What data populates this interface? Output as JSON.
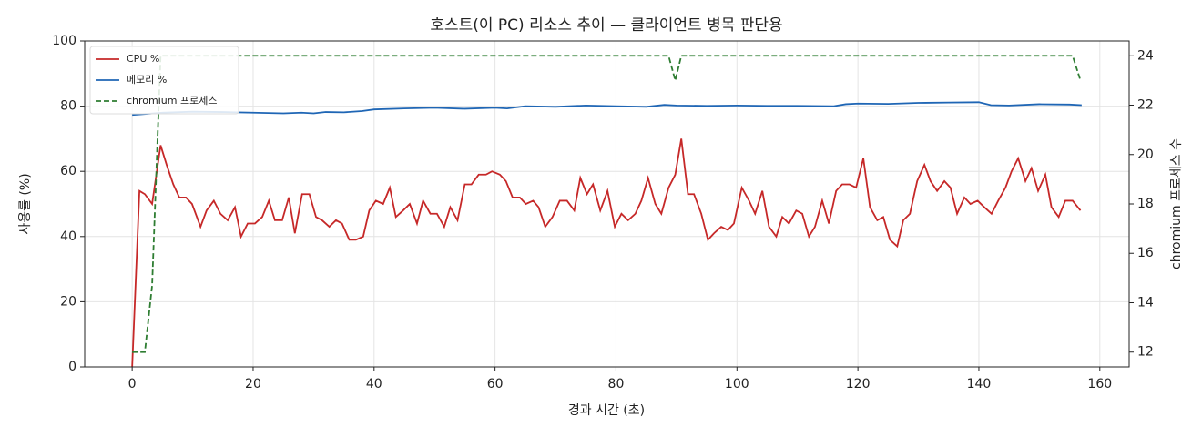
{
  "chart_data": {
    "type": "line",
    "title": "호스트(이 PC) 리소스 추이 — 클라이언트 병목 판단용",
    "x_label": "경과 시간 (초)",
    "y_label": "사용률 (%)",
    "y2_label": "chromium 프로세스 수",
    "xlim": [
      -7.85,
      164.85
    ],
    "xticks": [
      0,
      20,
      40,
      60,
      80,
      100,
      120,
      140,
      160
    ],
    "ylim": [
      0,
      100
    ],
    "yticks": [
      0,
      20,
      40,
      60,
      80,
      100
    ],
    "y2lim": [
      11.4,
      24.6
    ],
    "y2ticks": [
      12,
      14,
      16,
      18,
      20,
      22,
      24
    ],
    "grid": true,
    "legend": "upper-left",
    "series": [
      {
        "name": "CPU %",
        "color": "#c62828",
        "style": "solid",
        "x": [
          0,
          1.2,
          2.1,
          3.3,
          4.7,
          5.7,
          6.8,
          7.8,
          8.9,
          9.9,
          11.3,
          12.3,
          13.5,
          14.6,
          15.8,
          17.0,
          18.0,
          19.1,
          20.3,
          21.5,
          22.6,
          23.6,
          24.8,
          25.9,
          26.9,
          28.1,
          29.3,
          30.4,
          31.4,
          32.6,
          33.7,
          34.7,
          35.9,
          37.0,
          38.2,
          39.2,
          40.3,
          41.5,
          42.6,
          43.6,
          44.8,
          45.9,
          47.1,
          48.1,
          49.3,
          50.4,
          51.6,
          52.6,
          53.8,
          55.0,
          56.1,
          57.3,
          58.5,
          59.5,
          60.8,
          61.8,
          62.9,
          64.1,
          65.1,
          66.3,
          67.2,
          68.3,
          69.5,
          70.7,
          71.9,
          73.1,
          74.1,
          75.2,
          76.2,
          77.4,
          78.6,
          79.8,
          80.9,
          82.0,
          83.2,
          84.2,
          85.3,
          86.5,
          87.5,
          88.7,
          89.8,
          90.8,
          91.9,
          92.9,
          94.1,
          95.2,
          96.2,
          97.4,
          98.5,
          99.5,
          100.8,
          102.0,
          103.0,
          104.2,
          105.3,
          106.5,
          107.5,
          108.6,
          109.8,
          110.8,
          111.9,
          112.9,
          114.1,
          115.2,
          116.4,
          117.4,
          118.6,
          119.7,
          120.9,
          122.0,
          123.2,
          124.2,
          125.3,
          126.5,
          127.5,
          128.6,
          129.8,
          131.0,
          132.0,
          133.1,
          134.3,
          135.3,
          136.4,
          137.6,
          138.6,
          139.8,
          140.9,
          142.1,
          143.2,
          144.4,
          145.4,
          146.5,
          147.7,
          148.7,
          149.8,
          151.0,
          152.0,
          153.2,
          154.3,
          155.5,
          156.8
        ],
        "values": [
          0,
          54,
          53,
          50,
          68,
          62,
          56,
          52,
          52,
          50,
          43,
          48,
          51,
          47,
          45,
          49,
          40,
          44,
          44,
          46,
          51,
          45,
          45,
          52,
          41,
          53,
          53,
          46,
          45,
          43,
          45,
          44,
          39,
          39,
          40,
          48,
          51,
          50,
          55,
          46,
          48,
          50,
          44,
          51,
          47,
          47,
          43,
          49,
          45,
          56,
          56,
          59,
          59,
          60,
          59,
          57,
          52,
          52,
          50,
          51,
          49,
          43,
          46,
          51,
          51,
          48,
          58,
          53,
          56,
          48,
          54,
          43,
          47,
          45,
          47,
          51,
          58,
          50,
          47,
          55,
          59,
          70,
          53,
          53,
          47,
          39,
          41,
          43,
          42,
          44,
          55,
          51,
          47,
          54,
          43,
          40,
          46,
          44,
          48,
          47,
          40,
          43,
          51,
          44,
          54,
          56,
          56,
          55,
          64,
          49,
          45,
          46,
          39,
          37,
          45,
          47,
          57,
          62,
          57,
          54,
          57,
          55,
          47,
          52,
          50,
          51,
          49,
          47,
          51,
          55,
          60,
          64,
          57,
          61,
          54,
          59,
          49,
          46,
          51,
          51,
          48
        ]
      },
      {
        "name": "메모리 %",
        "color": "#1f66b5",
        "style": "solid",
        "x": [
          0,
          5,
          10,
          15,
          20,
          25,
          28,
          30,
          32,
          35,
          38,
          40,
          45,
          50,
          55,
          60,
          62,
          65,
          70,
          75,
          80,
          85,
          88,
          90,
          95,
          100,
          105,
          110,
          116,
          118,
          120,
          125,
          130,
          135,
          140,
          142,
          145,
          150,
          155,
          157
        ],
        "values": [
          77.3,
          78,
          78.3,
          78.2,
          78,
          77.8,
          78,
          77.8,
          78.2,
          78.1,
          78.5,
          79,
          79.3,
          79.5,
          79.2,
          79.5,
          79.3,
          80,
          79.8,
          80.2,
          80,
          79.8,
          80.4,
          80.2,
          80.1,
          80.2,
          80.1,
          80.1,
          80.0,
          80.6,
          80.8,
          80.7,
          81,
          81.1,
          81.2,
          80.3,
          80.2,
          80.6,
          80.5,
          80.3
        ]
      },
      {
        "name": "chromium 프로세스",
        "color": "#2e7d32",
        "style": "dashed",
        "axis": "y2",
        "x": [
          0,
          2.1,
          3.3,
          4.7,
          88.7,
          89.8,
          90.8,
          155.5,
          156.8
        ],
        "values": [
          12,
          12,
          14.7,
          24,
          24,
          23,
          24,
          24,
          23
        ]
      }
    ]
  }
}
